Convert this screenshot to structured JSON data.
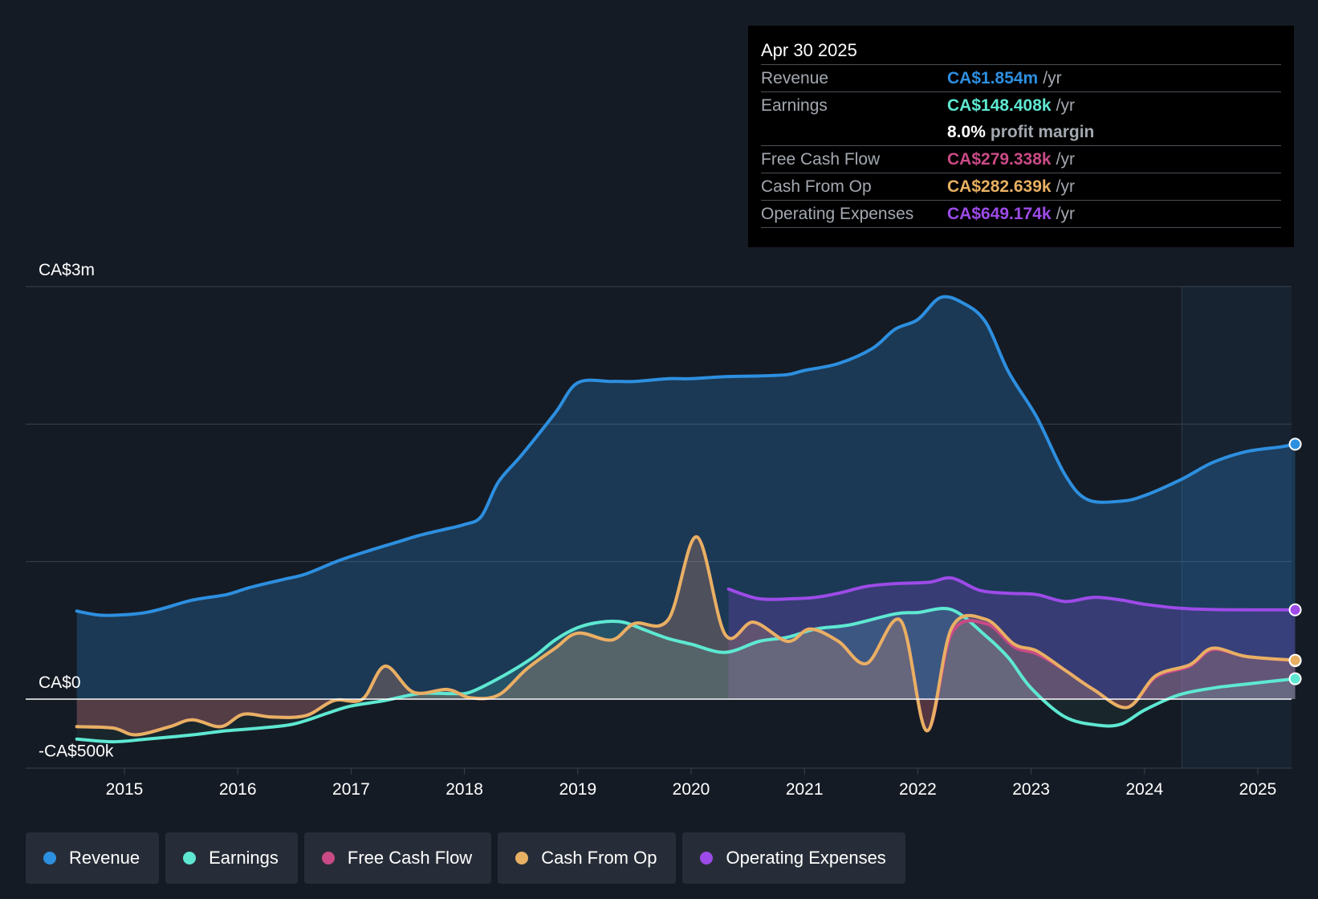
{
  "colors": {
    "revenue": "#2d8fe0",
    "earnings": "#5ee8d2",
    "free_cash_flow": "#c94a86",
    "cash_from_op": "#e8b063",
    "operating_expenses": "#9d4be8",
    "background": "#151b24"
  },
  "tooltip": {
    "date": "Apr 30 2025",
    "rows": [
      {
        "label": "Revenue",
        "value": "CA$1.854m",
        "unit": "/yr"
      },
      {
        "label": "Earnings",
        "value": "CA$148.408k",
        "unit": "/yr"
      },
      {
        "label": "",
        "value": "8.0%",
        "unit": "profit margin"
      },
      {
        "label": "Free Cash Flow",
        "value": "CA$279.338k",
        "unit": "/yr"
      },
      {
        "label": "Cash From Op",
        "value": "CA$282.639k",
        "unit": "/yr"
      },
      {
        "label": "Operating Expenses",
        "value": "CA$649.174k",
        "unit": "/yr"
      }
    ]
  },
  "legend": [
    {
      "label": "Revenue",
      "key": "revenue"
    },
    {
      "label": "Earnings",
      "key": "earnings"
    },
    {
      "label": "Free Cash Flow",
      "key": "free_cash_flow"
    },
    {
      "label": "Cash From Op",
      "key": "cash_from_op"
    },
    {
      "label": "Operating Expenses",
      "key": "operating_expenses"
    }
  ],
  "chart_data": {
    "type": "area",
    "title": "",
    "xlabel": "",
    "ylabel": "",
    "xlim": [
      2014.15,
      2025.33
    ],
    "ylim": [
      -500000,
      3000000
    ],
    "y_tick_labels": [
      {
        "value": 3000000,
        "label": "CA$3m"
      },
      {
        "value": 0,
        "label": "CA$0"
      },
      {
        "value": -500000,
        "label": "-CA$500k"
      }
    ],
    "x_ticks": [
      2015,
      2016,
      2017,
      2018,
      2019,
      2020,
      2021,
      2022,
      2023,
      2024,
      2025
    ],
    "x_tick_labels": [
      "2015",
      "2016",
      "2017",
      "2018",
      "2019",
      "2020",
      "2021",
      "2022",
      "2023",
      "2024",
      "2025"
    ],
    "forecast_start": 2024.33,
    "series": [
      {
        "name": "Revenue",
        "key": "revenue",
        "points": [
          [
            2014.58,
            640000
          ],
          [
            2014.8,
            610000
          ],
          [
            2015.1,
            620000
          ],
          [
            2015.3,
            650000
          ],
          [
            2015.6,
            720000
          ],
          [
            2015.9,
            760000
          ],
          [
            2016.1,
            810000
          ],
          [
            2016.4,
            870000
          ],
          [
            2016.6,
            910000
          ],
          [
            2016.9,
            1010000
          ],
          [
            2017.2,
            1090000
          ],
          [
            2017.4,
            1140000
          ],
          [
            2017.6,
            1190000
          ],
          [
            2017.8,
            1230000
          ],
          [
            2018.0,
            1270000
          ],
          [
            2018.15,
            1330000
          ],
          [
            2018.3,
            1580000
          ],
          [
            2018.5,
            1770000
          ],
          [
            2018.8,
            2080000
          ],
          [
            2019.0,
            2300000
          ],
          [
            2019.3,
            2310000
          ],
          [
            2019.5,
            2310000
          ],
          [
            2019.8,
            2330000
          ],
          [
            2020.0,
            2330000
          ],
          [
            2020.3,
            2345000
          ],
          [
            2020.6,
            2350000
          ],
          [
            2020.85,
            2360000
          ],
          [
            2021.0,
            2390000
          ],
          [
            2021.3,
            2440000
          ],
          [
            2021.6,
            2550000
          ],
          [
            2021.8,
            2690000
          ],
          [
            2022.0,
            2760000
          ],
          [
            2022.2,
            2920000
          ],
          [
            2022.4,
            2880000
          ],
          [
            2022.6,
            2740000
          ],
          [
            2022.8,
            2380000
          ],
          [
            2023.05,
            2050000
          ],
          [
            2023.3,
            1630000
          ],
          [
            2023.5,
            1450000
          ],
          [
            2023.8,
            1440000
          ],
          [
            2024.0,
            1480000
          ],
          [
            2024.33,
            1600000
          ],
          [
            2024.6,
            1720000
          ],
          [
            2024.9,
            1800000
          ],
          [
            2025.2,
            1834000
          ],
          [
            2025.33,
            1854000
          ]
        ]
      },
      {
        "name": "Earnings",
        "key": "earnings",
        "points": [
          [
            2014.58,
            -290000
          ],
          [
            2014.9,
            -310000
          ],
          [
            2015.2,
            -290000
          ],
          [
            2015.6,
            -260000
          ],
          [
            2015.9,
            -230000
          ],
          [
            2016.2,
            -210000
          ],
          [
            2016.5,
            -180000
          ],
          [
            2016.8,
            -100000
          ],
          [
            2017.0,
            -50000
          ],
          [
            2017.3,
            -10000
          ],
          [
            2017.6,
            40000
          ],
          [
            2017.9,
            40000
          ],
          [
            2018.05,
            50000
          ],
          [
            2018.3,
            150000
          ],
          [
            2018.6,
            300000
          ],
          [
            2018.8,
            430000
          ],
          [
            2019.0,
            520000
          ],
          [
            2019.2,
            560000
          ],
          [
            2019.4,
            560000
          ],
          [
            2019.6,
            500000
          ],
          [
            2019.8,
            440000
          ],
          [
            2020.0,
            400000
          ],
          [
            2020.3,
            340000
          ],
          [
            2020.6,
            420000
          ],
          [
            2020.85,
            450000
          ],
          [
            2021.1,
            510000
          ],
          [
            2021.4,
            540000
          ],
          [
            2021.8,
            620000
          ],
          [
            2022.0,
            630000
          ],
          [
            2022.3,
            650000
          ],
          [
            2022.6,
            460000
          ],
          [
            2022.8,
            300000
          ],
          [
            2023.0,
            80000
          ],
          [
            2023.3,
            -130000
          ],
          [
            2023.6,
            -190000
          ],
          [
            2023.8,
            -180000
          ],
          [
            2024.0,
            -80000
          ],
          [
            2024.3,
            30000
          ],
          [
            2024.6,
            80000
          ],
          [
            2024.9,
            110000
          ],
          [
            2025.33,
            148408
          ]
        ]
      },
      {
        "name": "Free Cash Flow",
        "key": "free_cash_flow",
        "points": [
          [
            2014.58,
            -200000
          ],
          [
            2014.9,
            -210000
          ],
          [
            2015.1,
            -260000
          ],
          [
            2015.4,
            -200000
          ],
          [
            2015.6,
            -150000
          ],
          [
            2015.85,
            -200000
          ],
          [
            2016.05,
            -110000
          ],
          [
            2016.3,
            -130000
          ],
          [
            2016.6,
            -120000
          ],
          [
            2016.85,
            -10000
          ],
          [
            2017.1,
            0
          ],
          [
            2017.3,
            240000
          ],
          [
            2017.55,
            50000
          ],
          [
            2017.85,
            70000
          ],
          [
            2018.05,
            10000
          ],
          [
            2018.3,
            30000
          ],
          [
            2018.55,
            220000
          ],
          [
            2018.8,
            370000
          ],
          [
            2019.0,
            480000
          ],
          [
            2019.3,
            430000
          ],
          [
            2019.5,
            550000
          ],
          [
            2019.8,
            580000
          ],
          [
            2020.05,
            1180000
          ],
          [
            2020.3,
            470000
          ],
          [
            2020.55,
            560000
          ],
          [
            2020.85,
            420000
          ],
          [
            2021.05,
            510000
          ],
          [
            2021.3,
            420000
          ],
          [
            2021.55,
            260000
          ],
          [
            2021.85,
            570000
          ],
          [
            2022.08,
            -230000
          ],
          [
            2022.3,
            480000
          ],
          [
            2022.6,
            550000
          ],
          [
            2022.85,
            380000
          ],
          [
            2023.05,
            330000
          ],
          [
            2023.3,
            210000
          ],
          [
            2023.55,
            70000
          ],
          [
            2023.85,
            -60000
          ],
          [
            2024.1,
            160000
          ],
          [
            2024.4,
            240000
          ],
          [
            2024.6,
            360000
          ],
          [
            2024.9,
            310000
          ],
          [
            2025.33,
            279338
          ]
        ]
      },
      {
        "name": "Cash From Op",
        "key": "cash_from_op",
        "points": [
          [
            2014.58,
            -200000
          ],
          [
            2014.9,
            -210000
          ],
          [
            2015.1,
            -260000
          ],
          [
            2015.4,
            -200000
          ],
          [
            2015.6,
            -150000
          ],
          [
            2015.85,
            -200000
          ],
          [
            2016.05,
            -110000
          ],
          [
            2016.3,
            -130000
          ],
          [
            2016.6,
            -120000
          ],
          [
            2016.85,
            -10000
          ],
          [
            2017.1,
            0
          ],
          [
            2017.3,
            240000
          ],
          [
            2017.55,
            50000
          ],
          [
            2017.85,
            70000
          ],
          [
            2018.05,
            10000
          ],
          [
            2018.3,
            30000
          ],
          [
            2018.55,
            220000
          ],
          [
            2018.8,
            370000
          ],
          [
            2019.0,
            480000
          ],
          [
            2019.3,
            430000
          ],
          [
            2019.5,
            550000
          ],
          [
            2019.8,
            580000
          ],
          [
            2020.05,
            1180000
          ],
          [
            2020.3,
            470000
          ],
          [
            2020.55,
            560000
          ],
          [
            2020.85,
            420000
          ],
          [
            2021.05,
            510000
          ],
          [
            2021.3,
            420000
          ],
          [
            2021.55,
            260000
          ],
          [
            2021.85,
            570000
          ],
          [
            2022.08,
            -230000
          ],
          [
            2022.3,
            520000
          ],
          [
            2022.6,
            580000
          ],
          [
            2022.85,
            400000
          ],
          [
            2023.05,
            350000
          ],
          [
            2023.3,
            210000
          ],
          [
            2023.55,
            70000
          ],
          [
            2023.85,
            -60000
          ],
          [
            2024.1,
            170000
          ],
          [
            2024.4,
            250000
          ],
          [
            2024.6,
            370000
          ],
          [
            2024.9,
            310000
          ],
          [
            2025.33,
            282639
          ]
        ]
      },
      {
        "name": "Operating Expenses",
        "key": "operating_expenses",
        "points": [
          [
            2020.33,
            800000
          ],
          [
            2020.6,
            730000
          ],
          [
            2020.9,
            730000
          ],
          [
            2021.1,
            740000
          ],
          [
            2021.3,
            770000
          ],
          [
            2021.55,
            820000
          ],
          [
            2021.8,
            840000
          ],
          [
            2022.1,
            850000
          ],
          [
            2022.3,
            880000
          ],
          [
            2022.55,
            790000
          ],
          [
            2022.8,
            770000
          ],
          [
            2023.05,
            760000
          ],
          [
            2023.3,
            710000
          ],
          [
            2023.55,
            740000
          ],
          [
            2023.8,
            720000
          ],
          [
            2024.0,
            690000
          ],
          [
            2024.33,
            660000
          ],
          [
            2024.7,
            650000
          ],
          [
            2025.33,
            649174
          ]
        ]
      }
    ]
  }
}
